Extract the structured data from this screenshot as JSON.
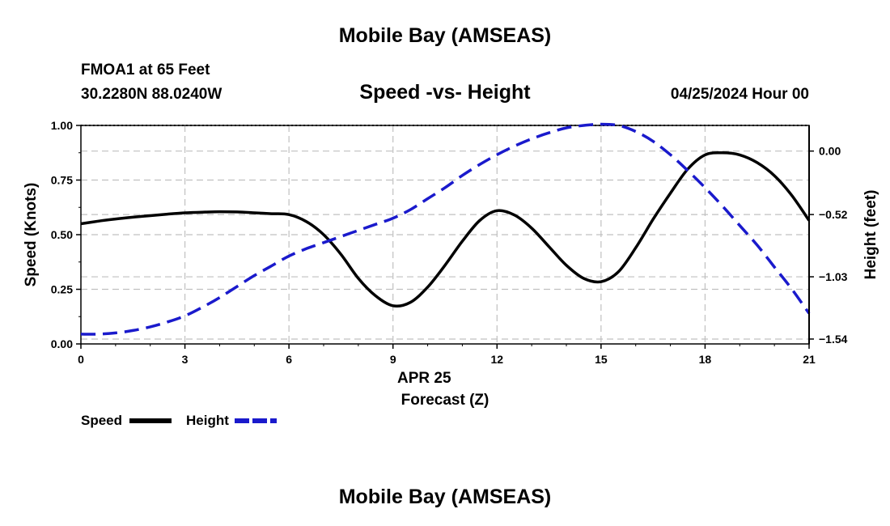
{
  "header": {
    "title": "Mobile Bay (AMSEAS)",
    "station": "FMOA1 at 65 Feet",
    "coordinates": "30.2280N  88.0240W",
    "subtitle": "Speed -vs- Height",
    "datetime": "04/25/2024 Hour 00"
  },
  "footer": {
    "title": "Mobile Bay (AMSEAS)"
  },
  "colors": {
    "speed": "#000000",
    "height": "#1a1acc",
    "grid": "#c0c0c0"
  },
  "chart_data": {
    "type": "line",
    "title": "Speed -vs- Height",
    "x": [
      0,
      0.5,
      1,
      1.5,
      2,
      2.5,
      3,
      3.5,
      4,
      4.5,
      5,
      5.5,
      6,
      6.5,
      7,
      7.5,
      8,
      8.5,
      9,
      9.5,
      10,
      10.5,
      11,
      11.5,
      12,
      12.5,
      13,
      13.5,
      14,
      14.5,
      15,
      15.5,
      16,
      16.5,
      17,
      17.5,
      18,
      18.5,
      19,
      19.5,
      20,
      20.5,
      21
    ],
    "xlim": [
      0,
      21
    ],
    "x_ticks": [
      "0",
      "3",
      "6",
      "9",
      "12",
      "15",
      "18",
      "21"
    ],
    "x_tick_values": [
      0,
      3,
      6,
      9,
      12,
      15,
      18,
      21
    ],
    "xlabel_date": "APR 25",
    "xlabel": "Forecast (Z)",
    "ylabel": "Speed (Knots)",
    "ylim": [
      0,
      1
    ],
    "y_ticks": [
      "0.00",
      "0.25",
      "0.50",
      "0.75",
      "1.00"
    ],
    "y_tick_values": [
      0,
      0.25,
      0.5,
      0.75,
      1.0
    ],
    "y2label": "Height (feet)",
    "y2lim": [
      -1.58,
      0.21
    ],
    "y2_ticks": [
      "0.00",
      "−0.52",
      "−1.03",
      "−1.54"
    ],
    "y2_tick_values": [
      0.0,
      -0.52,
      -1.03,
      -1.54
    ],
    "series": [
      {
        "name": "Speed",
        "axis": "left",
        "style": "solid",
        "values": [
          0.55,
          0.562,
          0.572,
          0.58,
          0.587,
          0.594,
          0.6,
          0.603,
          0.605,
          0.604,
          0.6,
          0.596,
          0.592,
          0.56,
          0.5,
          0.41,
          0.3,
          0.22,
          0.175,
          0.19,
          0.26,
          0.36,
          0.47,
          0.565,
          0.61,
          0.59,
          0.53,
          0.445,
          0.36,
          0.3,
          0.285,
          0.33,
          0.44,
          0.57,
          0.69,
          0.8,
          0.865,
          0.875,
          0.865,
          0.83,
          0.77,
          0.68,
          0.565
        ]
      },
      {
        "name": "Height",
        "axis": "right",
        "style": "dashed",
        "values": [
          -1.5,
          -1.5,
          -1.49,
          -1.47,
          -1.44,
          -1.4,
          -1.35,
          -1.28,
          -1.2,
          -1.11,
          -1.02,
          -0.94,
          -0.86,
          -0.8,
          -0.75,
          -0.7,
          -0.65,
          -0.6,
          -0.55,
          -0.48,
          -0.39,
          -0.3,
          -0.2,
          -0.11,
          -0.03,
          0.04,
          0.1,
          0.15,
          0.19,
          0.21,
          0.22,
          0.21,
          0.16,
          0.08,
          -0.03,
          -0.16,
          -0.3,
          -0.45,
          -0.61,
          -0.77,
          -0.95,
          -1.13,
          -1.33
        ]
      }
    ],
    "legend": [
      {
        "label": "Speed",
        "style": "solid"
      },
      {
        "label": "Height",
        "style": "dashed"
      }
    ]
  }
}
